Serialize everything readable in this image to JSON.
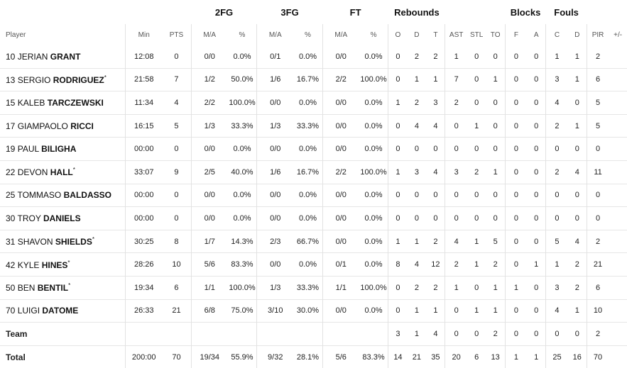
{
  "headers": {
    "groups": {
      "fg2": "2FG",
      "fg3": "3FG",
      "ft": "FT",
      "rebounds": "Rebounds",
      "blocks": "Blocks",
      "fouls": "Fouls"
    },
    "cols": [
      "Player",
      "Min",
      "PTS",
      "M/A",
      "%",
      "M/A",
      "%",
      "M/A",
      "%",
      "O",
      "D",
      "T",
      "AST",
      "STL",
      "TO",
      "F",
      "A",
      "C",
      "D",
      "PIR",
      "+/-"
    ]
  },
  "rows": [
    {
      "num": "10",
      "first": "JERIAN",
      "last": "GRANT",
      "star": false,
      "stats": [
        "12:08",
        "0",
        "0/0",
        "0.0%",
        "0/1",
        "0.0%",
        "0/0",
        "0.0%",
        "0",
        "2",
        "2",
        "1",
        "0",
        "0",
        "0",
        "0",
        "1",
        "1",
        "2",
        ""
      ]
    },
    {
      "num": "13",
      "first": "SERGIO",
      "last": "RODRIGUEZ",
      "star": true,
      "stats": [
        "21:58",
        "7",
        "1/2",
        "50.0%",
        "1/6",
        "16.7%",
        "2/2",
        "100.0%",
        "0",
        "1",
        "1",
        "7",
        "0",
        "1",
        "0",
        "0",
        "3",
        "1",
        "6",
        ""
      ]
    },
    {
      "num": "15",
      "first": "KALEB",
      "last": "TARCZEWSKI",
      "star": false,
      "stats": [
        "11:34",
        "4",
        "2/2",
        "100.0%",
        "0/0",
        "0.0%",
        "0/0",
        "0.0%",
        "1",
        "2",
        "3",
        "2",
        "0",
        "0",
        "0",
        "0",
        "4",
        "0",
        "5",
        ""
      ]
    },
    {
      "num": "17",
      "first": "GIAMPAOLO",
      "last": "RICCI",
      "star": false,
      "stats": [
        "16:15",
        "5",
        "1/3",
        "33.3%",
        "1/3",
        "33.3%",
        "0/0",
        "0.0%",
        "0",
        "4",
        "4",
        "0",
        "1",
        "0",
        "0",
        "0",
        "2",
        "1",
        "5",
        ""
      ]
    },
    {
      "num": "19",
      "first": "PAUL",
      "last": "BILIGHA",
      "star": false,
      "stats": [
        "00:00",
        "0",
        "0/0",
        "0.0%",
        "0/0",
        "0.0%",
        "0/0",
        "0.0%",
        "0",
        "0",
        "0",
        "0",
        "0",
        "0",
        "0",
        "0",
        "0",
        "0",
        "0",
        ""
      ]
    },
    {
      "num": "22",
      "first": "DEVON",
      "last": "HALL",
      "star": true,
      "stats": [
        "33:07",
        "9",
        "2/5",
        "40.0%",
        "1/6",
        "16.7%",
        "2/2",
        "100.0%",
        "1",
        "3",
        "4",
        "3",
        "2",
        "1",
        "0",
        "0",
        "2",
        "4",
        "11",
        ""
      ]
    },
    {
      "num": "25",
      "first": "TOMMASO",
      "last": "BALDASSO",
      "star": false,
      "stats": [
        "00:00",
        "0",
        "0/0",
        "0.0%",
        "0/0",
        "0.0%",
        "0/0",
        "0.0%",
        "0",
        "0",
        "0",
        "0",
        "0",
        "0",
        "0",
        "0",
        "0",
        "0",
        "0",
        ""
      ]
    },
    {
      "num": "30",
      "first": "TROY",
      "last": "DANIELS",
      "star": false,
      "stats": [
        "00:00",
        "0",
        "0/0",
        "0.0%",
        "0/0",
        "0.0%",
        "0/0",
        "0.0%",
        "0",
        "0",
        "0",
        "0",
        "0",
        "0",
        "0",
        "0",
        "0",
        "0",
        "0",
        ""
      ]
    },
    {
      "num": "31",
      "first": "SHAVON",
      "last": "SHIELDS",
      "star": true,
      "stats": [
        "30:25",
        "8",
        "1/7",
        "14.3%",
        "2/3",
        "66.7%",
        "0/0",
        "0.0%",
        "1",
        "1",
        "2",
        "4",
        "1",
        "5",
        "0",
        "0",
        "5",
        "4",
        "2",
        ""
      ]
    },
    {
      "num": "42",
      "first": "KYLE",
      "last": "HINES",
      "star": true,
      "stats": [
        "28:26",
        "10",
        "5/6",
        "83.3%",
        "0/0",
        "0.0%",
        "0/1",
        "0.0%",
        "8",
        "4",
        "12",
        "2",
        "1",
        "2",
        "0",
        "1",
        "1",
        "2",
        "21",
        ""
      ]
    },
    {
      "num": "50",
      "first": "BEN",
      "last": "BENTIL",
      "star": true,
      "stats": [
        "19:34",
        "6",
        "1/1",
        "100.0%",
        "1/3",
        "33.3%",
        "1/1",
        "100.0%",
        "0",
        "2",
        "2",
        "1",
        "0",
        "1",
        "1",
        "0",
        "3",
        "2",
        "6",
        ""
      ]
    },
    {
      "num": "70",
      "first": "LUIGI",
      "last": "DATOME",
      "star": false,
      "stats": [
        "26:33",
        "21",
        "6/8",
        "75.0%",
        "3/10",
        "30.0%",
        "0/0",
        "0.0%",
        "0",
        "1",
        "1",
        "0",
        "1",
        "1",
        "0",
        "0",
        "4",
        "1",
        "10",
        ""
      ]
    }
  ],
  "team": {
    "label": "Team",
    "stats": [
      "",
      "",
      "",
      "",
      "",
      "",
      "",
      "",
      "3",
      "1",
      "4",
      "0",
      "0",
      "2",
      "0",
      "0",
      "0",
      "0",
      "2",
      ""
    ]
  },
  "total": {
    "label": "Total",
    "stats": [
      "200:00",
      "70",
      "19/34",
      "55.9%",
      "9/32",
      "28.1%",
      "5/6",
      "83.3%",
      "14",
      "21",
      "35",
      "20",
      "6",
      "13",
      "1",
      "1",
      "25",
      "16",
      "70",
      ""
    ]
  }
}
